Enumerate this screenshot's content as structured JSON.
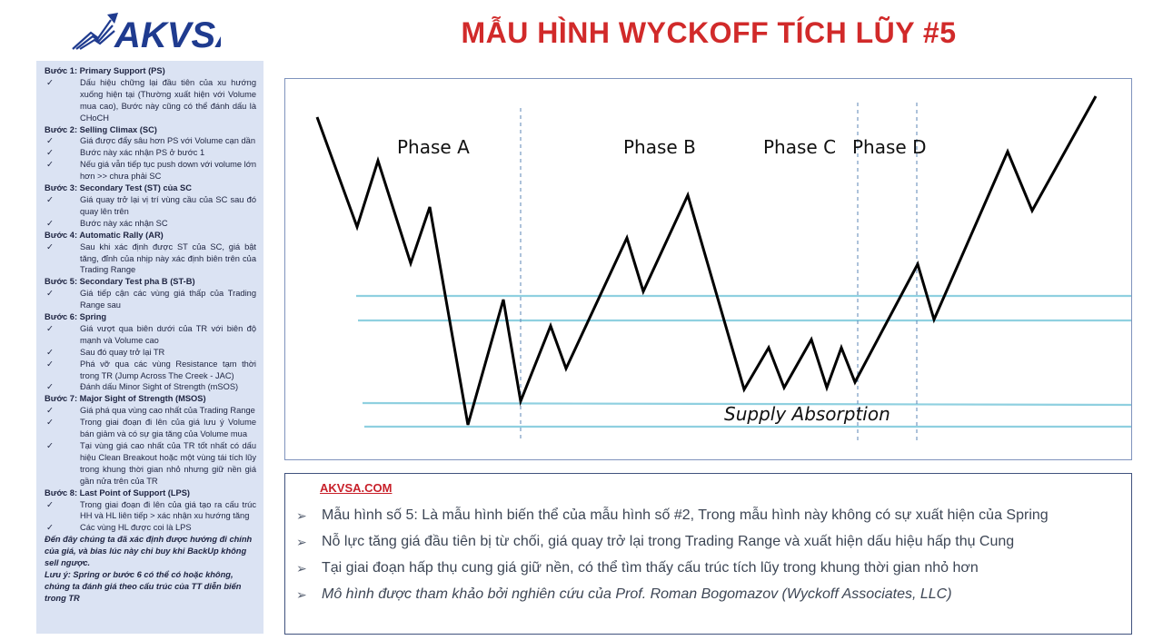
{
  "logo": {
    "text": "AKVSA"
  },
  "title": "MẪU HÌNH WYCKOFF TÍCH LŨY #5",
  "sidebar": {
    "steps": [
      {
        "title": "Bước 1: Primary Support (PS)",
        "bullets": [
          "Dấu hiệu chững lại đầu tiên của xu hướng xuống hiện tại (Thường xuất hiện với Volume mua cao), Bước này cũng có thể đánh dấu là CHoCH"
        ]
      },
      {
        "title": "Bước 2: Selling Climax (SC)",
        "bullets": [
          "Giá được đẩy sâu hơn PS với Volume cạn dần",
          "Bước này xác nhận PS ở bước 1",
          "Nếu giá vẫn tiếp tục push down với volume lớn hơn >> chưa phải SC"
        ]
      },
      {
        "title": "Bước 3: Secondary Test (ST) của SC",
        "bullets": [
          "Giá quay trở lại vị trí vùng cầu của SC sau đó quay lên trên",
          "Bước này xác nhận SC"
        ]
      },
      {
        "title": "Bước 4: Automatic Rally (AR)",
        "bullets": [
          "Sau khi xác định được ST của SC, giá bật tăng, đỉnh của nhịp này xác định biên trên của Trading Range"
        ]
      },
      {
        "title": "Bước 5: Secondary Test pha B (ST-B)",
        "bullets": [
          "Giá tiếp cận các vùng giá thấp của Trading Range sau"
        ]
      },
      {
        "title": "Bước 6: Spring",
        "bullets": [
          "Giá vượt qua biên dưới của TR với biên độ mạnh và Volume cao",
          "Sau đó quay trở lại TR",
          "Phá vỡ qua các vùng Resistance tạm thời trong TR (Jump Across The Creek - JAC)",
          "Đánh dấu Minor Sight of Strength (mSOS)"
        ]
      },
      {
        "title": "Bước 7: Major Sight of Strength (MSOS)",
        "bullets": [
          "Giá phá qua vùng cao nhất của Trading Range",
          "Trong giai đoạn đi lên của giá lưu ý Volume bán giảm và có sự gia tăng của Volume mua",
          "Tại vùng giá cao nhất của TR tốt nhất có dấu hiệu Clean Breakout hoặc một vùng tái tích lũy trong khung thời gian nhỏ nhưng giữ nền giá gần nửa trên của TR"
        ]
      },
      {
        "title": "Bước 8: Last Point of Support (LPS)",
        "bullets": [
          "Trong giai đoạn đi lên của giá tạo ra cấu trúc HH và HL liên tiếp > xác nhận xu hướng tăng",
          "Các vùng HL được coi là LPS"
        ]
      }
    ],
    "note1": "Đến đây chúng ta đã xác định được hướng đi chính của giá, và bias lúc này chỉ buy khi BackUp không sell ngược.",
    "note2": "Lưu ý: Spring or bước 6 có thể có hoặc không, chúng ta đánh giá theo cấu trúc của TT diễn biến trong TR"
  },
  "diagram": {
    "phases": [
      "Phase A",
      "Phase B",
      "Phase C",
      "Phase D"
    ],
    "annotation": "Supply Absorption",
    "line_color": "#000000",
    "level_color": "#8fd0e0",
    "divider_color": "#5b86b6"
  },
  "info": {
    "source": "AKVSA.COM",
    "notes": [
      "Mẫu hình số 5: Là mẫu hình biến thể của mẫu hình số #2, Trong mẫu hình này không có sự xuất hiện của Spring",
      "Nỗ lực tăng giá đầu tiên bị từ chối, giá quay trở lại trong Trading Range và xuất hiện dấu hiệu hấp thụ Cung",
      "Tại giai đoạn hấp thụ cung giá giữ nền, có thể tìm thấy cấu trúc tích lũy trong khung thời gian nhỏ hơn",
      "Mô hình được tham khảo bởi nghiên cứu của Prof. Roman Bogomazov (Wyckoff Associates, LLC)"
    ]
  },
  "colors": {
    "title_red": "#d12a2a",
    "brand_blue": "#1f3b8f",
    "sidebar_bg": "#dbe3f3"
  }
}
